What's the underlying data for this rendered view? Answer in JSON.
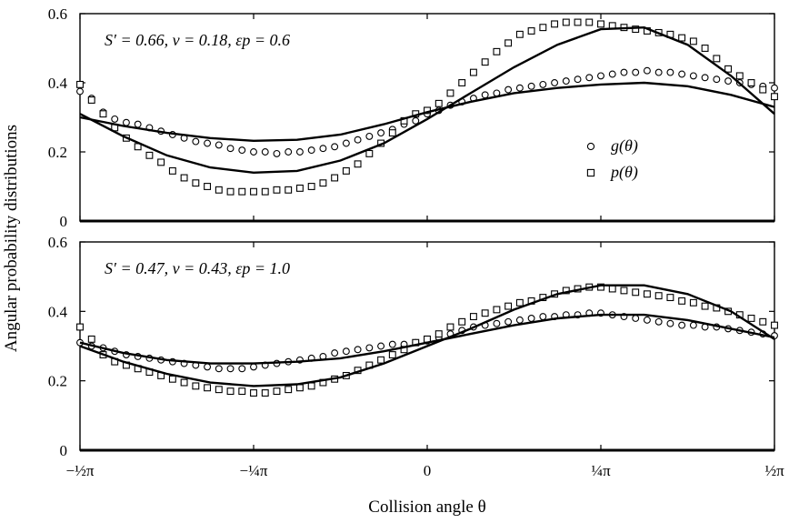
{
  "figure": {
    "ylabel": "Angular probability distributions",
    "xlabel": "Collision angle θ"
  },
  "chart_data": [
    {
      "type": "scatter",
      "panel": "top",
      "annotation": "S′ = 0.66, ν = 0.18, εp = 0.6",
      "xlim": [
        -1.5708,
        1.5708
      ],
      "ylim": [
        0,
        0.6
      ],
      "yticks": [
        "0",
        "0.2",
        "0.4",
        "0.6"
      ],
      "grid": false,
      "legend": {
        "position": "right-middle",
        "entries": [
          "g(θ)",
          "p(θ)"
        ]
      },
      "series": [
        {
          "name": "g(θ)",
          "marker": "circle",
          "x": [
            -1.5708,
            -1.5184,
            -1.466,
            -1.4137,
            -1.3614,
            -1.309,
            -1.2566,
            -1.2043,
            -1.1519,
            -1.0996,
            -1.0472,
            -0.9948,
            -0.9425,
            -0.8901,
            -0.8378,
            -0.7854,
            -0.733,
            -0.6807,
            -0.6283,
            -0.576,
            -0.5236,
            -0.4712,
            -0.4189,
            -0.3665,
            -0.3142,
            -0.2618,
            -0.2094,
            -0.1571,
            -0.1047,
            -0.0524,
            0.0,
            0.0524,
            0.1047,
            0.1571,
            0.2094,
            0.2618,
            0.3142,
            0.3665,
            0.4189,
            0.4712,
            0.5236,
            0.576,
            0.6283,
            0.6807,
            0.733,
            0.7854,
            0.8378,
            0.8901,
            0.9425,
            0.9948,
            1.0472,
            1.0996,
            1.1519,
            1.2043,
            1.2566,
            1.309,
            1.3614,
            1.4137,
            1.466,
            1.5184,
            1.5708
          ],
          "y": [
            0.375,
            0.355,
            0.315,
            0.295,
            0.285,
            0.28,
            0.27,
            0.26,
            0.25,
            0.24,
            0.23,
            0.225,
            0.22,
            0.21,
            0.205,
            0.2,
            0.2,
            0.195,
            0.2,
            0.2,
            0.205,
            0.21,
            0.215,
            0.225,
            0.235,
            0.245,
            0.255,
            0.265,
            0.28,
            0.29,
            0.31,
            0.32,
            0.335,
            0.345,
            0.355,
            0.365,
            0.37,
            0.38,
            0.385,
            0.39,
            0.395,
            0.4,
            0.405,
            0.41,
            0.415,
            0.42,
            0.425,
            0.43,
            0.43,
            0.435,
            0.43,
            0.43,
            0.425,
            0.42,
            0.415,
            0.41,
            0.405,
            0.4,
            0.395,
            0.39,
            0.385
          ]
        },
        {
          "name": "p(θ)",
          "marker": "square",
          "x": [
            -1.5708,
            -1.5184,
            -1.466,
            -1.4137,
            -1.3614,
            -1.309,
            -1.2566,
            -1.2043,
            -1.1519,
            -1.0996,
            -1.0472,
            -0.9948,
            -0.9425,
            -0.8901,
            -0.8378,
            -0.7854,
            -0.733,
            -0.6807,
            -0.6283,
            -0.576,
            -0.5236,
            -0.4712,
            -0.4189,
            -0.3665,
            -0.3142,
            -0.2618,
            -0.2094,
            -0.1571,
            -0.1047,
            -0.0524,
            0.0,
            0.0524,
            0.1047,
            0.1571,
            0.2094,
            0.2618,
            0.3142,
            0.3665,
            0.4189,
            0.4712,
            0.5236,
            0.576,
            0.6283,
            0.6807,
            0.733,
            0.7854,
            0.8378,
            0.8901,
            0.9425,
            0.9948,
            1.0472,
            1.0996,
            1.1519,
            1.2043,
            1.2566,
            1.309,
            1.3614,
            1.4137,
            1.466,
            1.5184,
            1.5708
          ],
          "y": [
            0.395,
            0.35,
            0.31,
            0.27,
            0.24,
            0.215,
            0.19,
            0.17,
            0.145,
            0.125,
            0.11,
            0.1,
            0.09,
            0.085,
            0.085,
            0.085,
            0.085,
            0.09,
            0.09,
            0.095,
            0.1,
            0.11,
            0.125,
            0.145,
            0.165,
            0.195,
            0.225,
            0.255,
            0.29,
            0.31,
            0.32,
            0.34,
            0.37,
            0.4,
            0.43,
            0.46,
            0.49,
            0.515,
            0.54,
            0.55,
            0.56,
            0.57,
            0.575,
            0.575,
            0.575,
            0.57,
            0.565,
            0.56,
            0.555,
            0.55,
            0.545,
            0.54,
            0.53,
            0.52,
            0.5,
            0.47,
            0.44,
            0.42,
            0.4,
            0.38,
            0.36
          ]
        },
        {
          "name": "",
          "marker": "line",
          "role": "g-theory",
          "x": [
            -1.5708,
            -1.3744,
            -1.1781,
            -0.9817,
            -0.7854,
            -0.589,
            -0.3927,
            -0.1963,
            0.0,
            0.1963,
            0.3927,
            0.589,
            0.7854,
            0.9817,
            1.1781,
            1.3744,
            1.5708
          ],
          "y": [
            0.3,
            0.275,
            0.255,
            0.24,
            0.232,
            0.235,
            0.25,
            0.28,
            0.315,
            0.345,
            0.37,
            0.385,
            0.395,
            0.4,
            0.39,
            0.365,
            0.33
          ]
        },
        {
          "name": "",
          "marker": "line",
          "role": "p-theory",
          "x": [
            -1.5708,
            -1.3744,
            -1.1781,
            -0.9817,
            -0.7854,
            -0.589,
            -0.3927,
            -0.1963,
            0.0,
            0.1963,
            0.3927,
            0.589,
            0.7854,
            0.9817,
            1.1781,
            1.3744,
            1.5708
          ],
          "y": [
            0.31,
            0.245,
            0.19,
            0.155,
            0.14,
            0.145,
            0.175,
            0.225,
            0.295,
            0.37,
            0.445,
            0.51,
            0.555,
            0.56,
            0.51,
            0.42,
            0.31
          ]
        }
      ]
    },
    {
      "type": "scatter",
      "panel": "bottom",
      "annotation": "S′ = 0.47, ν = 0.43, εp = 1.0",
      "xlim": [
        -1.5708,
        1.5708
      ],
      "ylim": [
        0,
        0.6
      ],
      "yticks": [
        "0",
        "0.2",
        "0.4",
        "0.6"
      ],
      "xticks": [
        "−½π",
        "−¼π",
        "0",
        "¼π",
        "½π"
      ],
      "grid": false,
      "series": [
        {
          "name": "g(θ)",
          "marker": "circle",
          "x": [
            -1.5708,
            -1.5184,
            -1.466,
            -1.4137,
            -1.3614,
            -1.309,
            -1.2566,
            -1.2043,
            -1.1519,
            -1.0996,
            -1.0472,
            -0.9948,
            -0.9425,
            -0.8901,
            -0.8378,
            -0.7854,
            -0.733,
            -0.6807,
            -0.6283,
            -0.576,
            -0.5236,
            -0.4712,
            -0.4189,
            -0.3665,
            -0.3142,
            -0.2618,
            -0.2094,
            -0.1571,
            -0.1047,
            -0.0524,
            0.0,
            0.0524,
            0.1047,
            0.1571,
            0.2094,
            0.2618,
            0.3142,
            0.3665,
            0.4189,
            0.4712,
            0.5236,
            0.576,
            0.6283,
            0.6807,
            0.733,
            0.7854,
            0.8378,
            0.8901,
            0.9425,
            0.9948,
            1.0472,
            1.0996,
            1.1519,
            1.2043,
            1.2566,
            1.309,
            1.3614,
            1.4137,
            1.466,
            1.5184,
            1.5708
          ],
          "y": [
            0.31,
            0.3,
            0.295,
            0.285,
            0.275,
            0.27,
            0.265,
            0.26,
            0.255,
            0.25,
            0.245,
            0.24,
            0.235,
            0.235,
            0.235,
            0.24,
            0.245,
            0.25,
            0.255,
            0.26,
            0.265,
            0.27,
            0.28,
            0.285,
            0.29,
            0.295,
            0.3,
            0.305,
            0.305,
            0.31,
            0.315,
            0.325,
            0.335,
            0.345,
            0.355,
            0.36,
            0.365,
            0.37,
            0.375,
            0.38,
            0.385,
            0.385,
            0.39,
            0.39,
            0.395,
            0.395,
            0.39,
            0.385,
            0.38,
            0.375,
            0.37,
            0.365,
            0.36,
            0.36,
            0.355,
            0.355,
            0.35,
            0.345,
            0.34,
            0.335,
            0.33
          ]
        },
        {
          "name": "p(θ)",
          "marker": "square",
          "x": [
            -1.5708,
            -1.5184,
            -1.466,
            -1.4137,
            -1.3614,
            -1.309,
            -1.2566,
            -1.2043,
            -1.1519,
            -1.0996,
            -1.0472,
            -0.9948,
            -0.9425,
            -0.8901,
            -0.8378,
            -0.7854,
            -0.733,
            -0.6807,
            -0.6283,
            -0.576,
            -0.5236,
            -0.4712,
            -0.4189,
            -0.3665,
            -0.3142,
            -0.2618,
            -0.2094,
            -0.1571,
            -0.1047,
            -0.0524,
            0.0,
            0.0524,
            0.1047,
            0.1571,
            0.2094,
            0.2618,
            0.3142,
            0.3665,
            0.4189,
            0.4712,
            0.5236,
            0.576,
            0.6283,
            0.6807,
            0.733,
            0.7854,
            0.8378,
            0.8901,
            0.9425,
            0.9948,
            1.0472,
            1.0996,
            1.1519,
            1.2043,
            1.2566,
            1.309,
            1.3614,
            1.4137,
            1.466,
            1.5184,
            1.5708
          ],
          "y": [
            0.355,
            0.32,
            0.275,
            0.255,
            0.245,
            0.235,
            0.225,
            0.215,
            0.205,
            0.195,
            0.185,
            0.18,
            0.175,
            0.17,
            0.17,
            0.165,
            0.165,
            0.17,
            0.175,
            0.18,
            0.185,
            0.195,
            0.205,
            0.215,
            0.23,
            0.245,
            0.26,
            0.275,
            0.29,
            0.31,
            0.32,
            0.335,
            0.355,
            0.37,
            0.385,
            0.395,
            0.405,
            0.415,
            0.425,
            0.43,
            0.44,
            0.45,
            0.46,
            0.465,
            0.47,
            0.47,
            0.465,
            0.46,
            0.455,
            0.45,
            0.445,
            0.44,
            0.43,
            0.425,
            0.415,
            0.41,
            0.4,
            0.39,
            0.38,
            0.37,
            0.36
          ]
        },
        {
          "name": "",
          "marker": "line",
          "role": "g-theory",
          "x": [
            -1.5708,
            -1.3744,
            -1.1781,
            -0.9817,
            -0.7854,
            -0.589,
            -0.3927,
            -0.1963,
            0.0,
            0.1963,
            0.3927,
            0.589,
            0.7854,
            0.9817,
            1.1781,
            1.3744,
            1.5708
          ],
          "y": [
            0.31,
            0.28,
            0.26,
            0.25,
            0.25,
            0.255,
            0.265,
            0.285,
            0.31,
            0.335,
            0.36,
            0.38,
            0.39,
            0.39,
            0.375,
            0.35,
            0.325
          ]
        },
        {
          "name": "",
          "marker": "line",
          "role": "p-theory",
          "x": [
            -1.5708,
            -1.3744,
            -1.1781,
            -0.9817,
            -0.7854,
            -0.589,
            -0.3927,
            -0.1963,
            0.0,
            0.1963,
            0.3927,
            0.589,
            0.7854,
            0.9817,
            1.1781,
            1.3744,
            1.5708
          ],
          "y": [
            0.3,
            0.255,
            0.22,
            0.195,
            0.185,
            0.19,
            0.21,
            0.25,
            0.3,
            0.35,
            0.405,
            0.45,
            0.475,
            0.475,
            0.45,
            0.4,
            0.32
          ]
        }
      ]
    }
  ]
}
